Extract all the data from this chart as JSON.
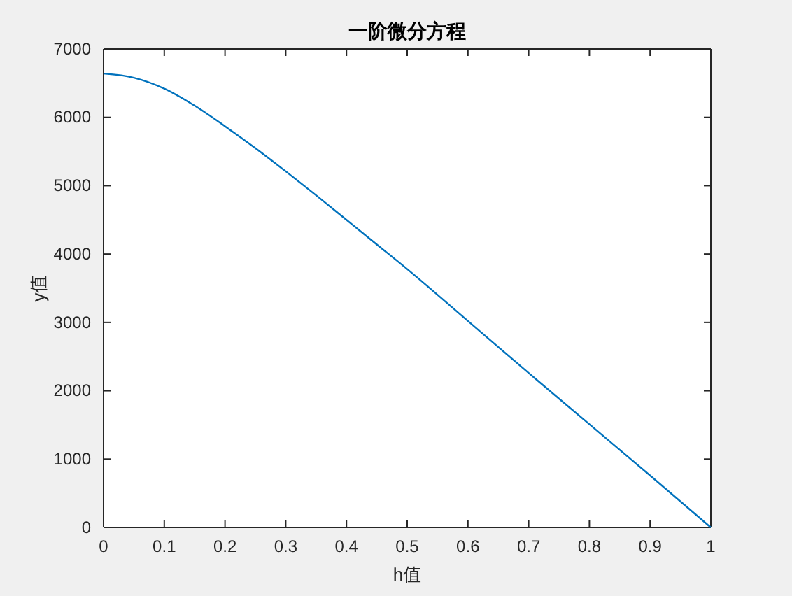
{
  "chart_data": {
    "type": "line",
    "title": "一阶微分方程",
    "xlabel": "h值",
    "ylabel": "y值",
    "x": [
      0,
      0.05,
      0.1,
      0.15,
      0.2,
      0.25,
      0.3,
      0.35,
      0.4,
      0.45,
      0.5,
      0.6,
      0.7,
      0.8,
      0.9,
      1
    ],
    "series": [
      {
        "color": "#0072bd",
        "values": [
          6640,
          6580,
          6420,
          6170,
          5870,
          5550,
          5210,
          4860,
          4500,
          4140,
          3780,
          3020,
          2260,
          1510,
          760,
          0
        ]
      }
    ],
    "xlim": [
      0,
      1
    ],
    "xticks": [
      0,
      0.1,
      0.2,
      0.3,
      0.4,
      0.5,
      0.6,
      0.7,
      0.8,
      0.9,
      1
    ],
    "ylim": [
      0,
      7000
    ],
    "yticks": [
      0,
      1000,
      2000,
      3000,
      4000,
      5000,
      6000,
      7000
    ],
    "marker": "none",
    "line_style": "solid"
  }
}
